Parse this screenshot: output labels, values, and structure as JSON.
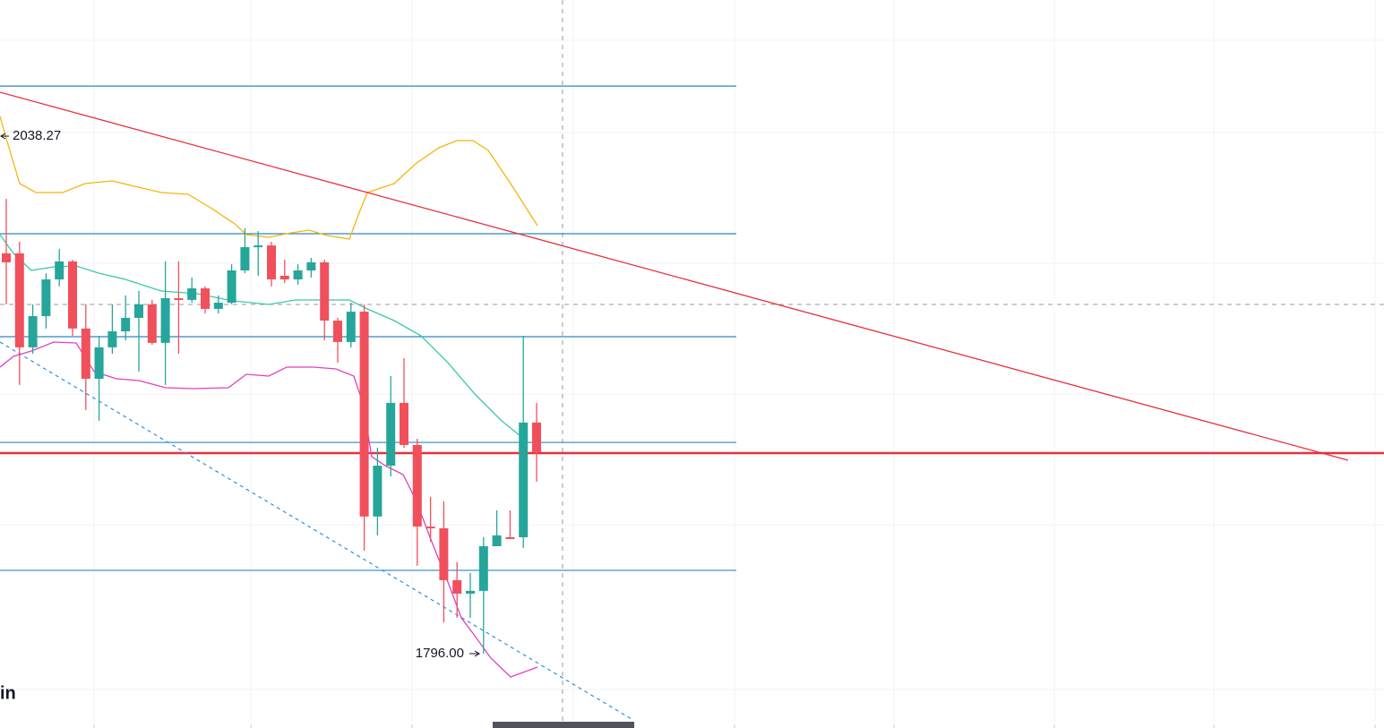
{
  "chart_data": {
    "type": "candlestick",
    "watermark": "in",
    "ylim": [
      1761.2,
      2102.0
    ],
    "up_color": "#26a69a",
    "down_color": "#f0505c",
    "open": [
      1983.4,
      1983.4,
      1939.4,
      1954.0,
      1971.2,
      1979.6,
      1948.2,
      1924.7,
      1939.4,
      1946.9,
      1953.2,
      1959.5,
      1941.5,
      1962.4,
      1961.6,
      1967.0,
      1957.4,
      1960.3,
      1975.4,
      1986.3,
      1987.1,
      1972.9,
      1971.2,
      1975.4,
      1979.2,
      1951.9,
      1941.9,
      1956.1,
      1860.2,
      1884.0,
      1913.4,
      1893.7,
      1855.5,
      1854.7,
      1830.4,
      1824.1,
      1825.4,
      1846.3,
      1850.5,
      1850.5,
      1904.2
    ],
    "close": [
      1979.2,
      1939.4,
      1954.0,
      1971.2,
      1979.6,
      1948.2,
      1924.7,
      1939.4,
      1946.9,
      1953.2,
      1959.5,
      1941.5,
      1962.4,
      1961.6,
      1967.0,
      1957.4,
      1960.3,
      1975.4,
      1986.3,
      1987.1,
      1971.2,
      1971.2,
      1975.4,
      1979.2,
      1951.9,
      1941.9,
      1956.1,
      1860.2,
      1884.0,
      1913.4,
      1893.7,
      1855.5,
      1854.7,
      1830.4,
      1824.1,
      1825.4,
      1846.3,
      1851.4,
      1849.7,
      1904.2,
      1890.4
    ],
    "high": [
      2008.9,
      1988.8,
      1959.5,
      1974.1,
      1985.5,
      1980.4,
      1959.5,
      1944.8,
      1959.5,
      1963.7,
      1965.8,
      1961.6,
      1979.6,
      1979.6,
      1972.1,
      1967.9,
      1963.7,
      1978.3,
      1995.1,
      1993.8,
      1988.8,
      1980.4,
      1978.3,
      1981.3,
      1980.4,
      1953.2,
      1960.3,
      1959.5,
      1892.4,
      1926.0,
      1934.3,
      1896.6,
      1869.4,
      1867.3,
      1838.8,
      1833.8,
      1850.5,
      1863.1,
      1863.1,
      1944.8,
      1913.4
    ],
    "low": [
      1959.5,
      1921.8,
      1936.4,
      1948.2,
      1967.9,
      1944.8,
      1910.0,
      1905.0,
      1936.4,
      1942.7,
      1928.0,
      1940.6,
      1921.8,
      1936.4,
      1960.3,
      1955.3,
      1955.3,
      1959.5,
      1974.1,
      1972.9,
      1967.9,
      1969.5,
      1968.7,
      1972.1,
      1942.7,
      1932.2,
      1939.4,
      1844.2,
      1851.4,
      1879.0,
      1892.4,
      1837.1,
      1848.4,
      1810.7,
      1812.8,
      1812.8,
      1796.0,
      1846.3,
      1849.7,
      1845.5,
      1876.5
    ],
    "levels": [
      {
        "value": 2061.7,
        "color": "#2e86c1"
      },
      {
        "value": 1992.6,
        "color": "#2e86c1"
      },
      {
        "value": 1944.4,
        "color": "#2e86c1"
      },
      {
        "value": 1894.9,
        "color": "#2e86c1"
      },
      {
        "value": 1835.0,
        "color": "#2e86c1"
      },
      {
        "value": 1889.9,
        "color": "#e8313b"
      }
    ],
    "crosshair": 1959.5,
    "annotations": [
      {
        "value": 2038.27,
        "label": "2038.27"
      },
      {
        "value": 1796,
        "label": "1796.00"
      }
    ]
  }
}
